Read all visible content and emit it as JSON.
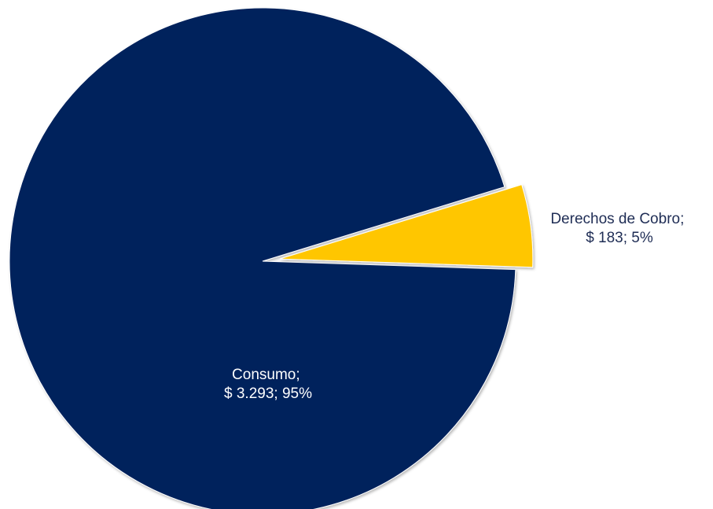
{
  "chart_data": {
    "type": "pie",
    "title": "",
    "slices": [
      {
        "name": "Consumo",
        "value": 3293,
        "value_text": "$ 3.293",
        "percent_text": "95%",
        "color": "#00205c",
        "label_color": "#ffffff",
        "exploded": false
      },
      {
        "name": "Derechos de Cobro",
        "value": 183,
        "value_text": "$ 183",
        "percent_text": "5%",
        "color": "#ffc600",
        "label_color": "#1f2d55",
        "exploded": true
      }
    ],
    "legend": "none",
    "label_format": "{name}; {value}; {percent}"
  }
}
